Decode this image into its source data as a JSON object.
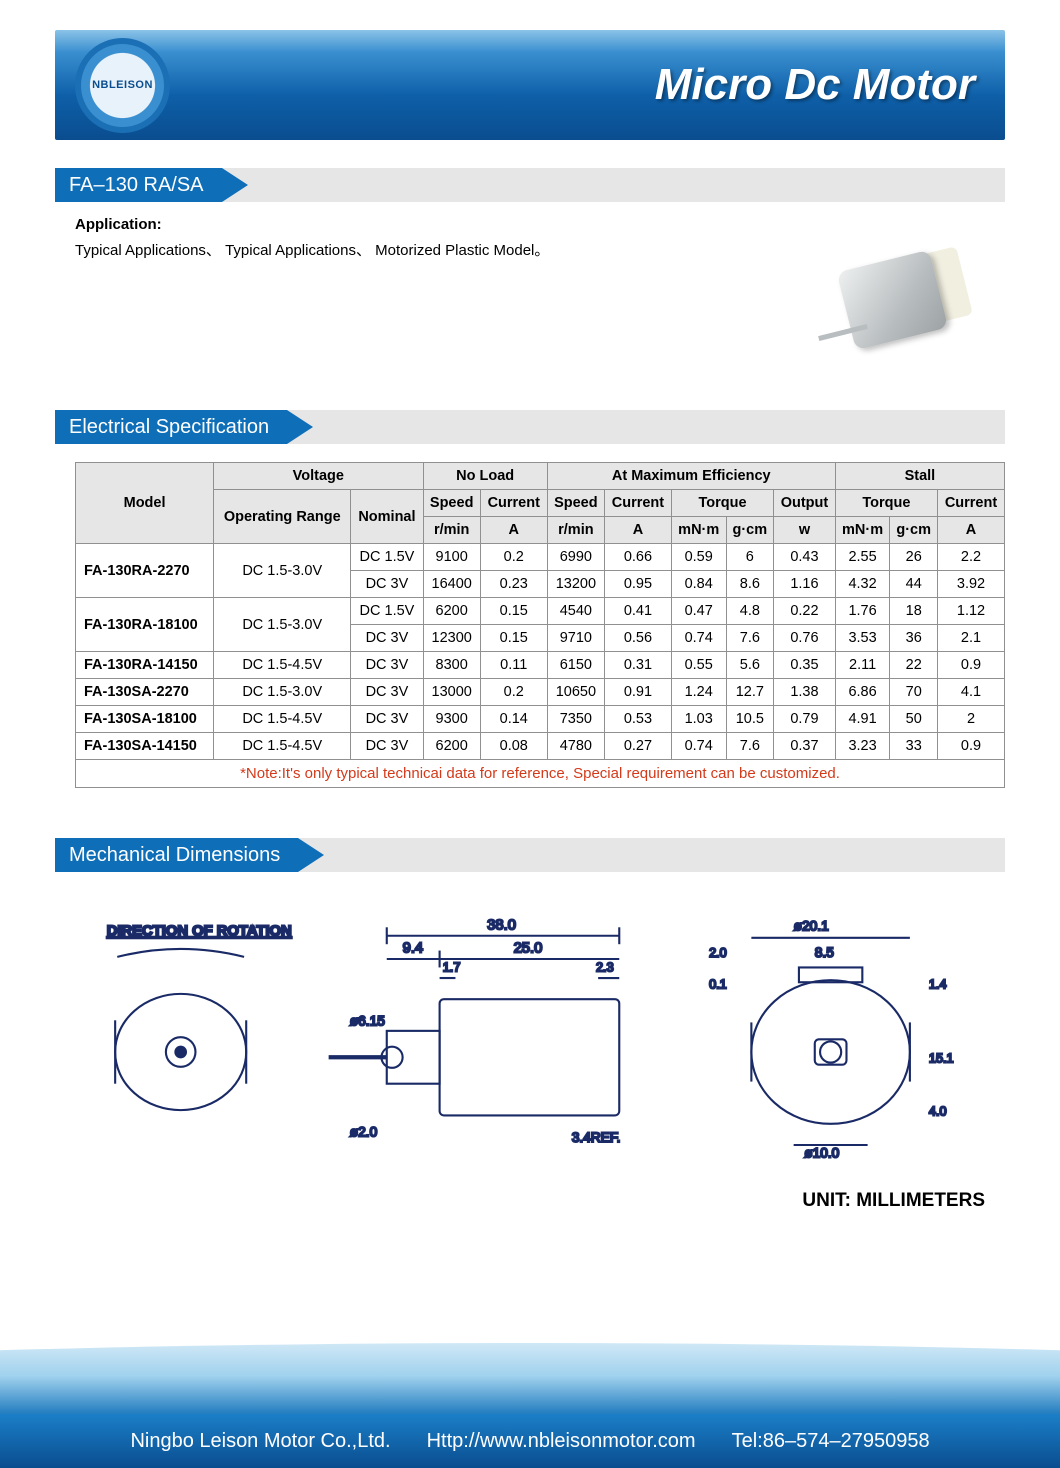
{
  "banner": {
    "logo_text": "NBLEISON",
    "title": "Micro Dc Motor"
  },
  "model_header": "FA–130 RA/SA",
  "application": {
    "label": "Application:",
    "text": "Typical Applications、 Typical Applications、 Motorized Plastic Model。"
  },
  "elec_header": "Electrical Specification",
  "spec": {
    "head": {
      "model": "Model",
      "voltage": "Voltage",
      "noload": "No Load",
      "maxeff": "At Maximum Efficiency",
      "stall": "Stall",
      "op_range": "Operating Range",
      "nominal": "Nominal",
      "speed": "Speed",
      "current": "Current",
      "torque": "Torque",
      "output": "Output",
      "rmin": "r/min",
      "A": "A",
      "mNm": "mN·m",
      "gcm": "g·cm",
      "w": "w"
    },
    "rows": [
      {
        "model": "FA-130RA-2270",
        "range": "DC 1.5-3.0V",
        "span": 2,
        "sub": [
          {
            "nom": "DC 1.5V",
            "nl_s": "9100",
            "nl_a": "0.2",
            "me_s": "6990",
            "me_a": "0.66",
            "me_t1": "0.59",
            "me_t2": "6",
            "me_w": "0.43",
            "st_t1": "2.55",
            "st_t2": "26",
            "st_a": "2.2"
          },
          {
            "nom": "DC 3V",
            "nl_s": "16400",
            "nl_a": "0.23",
            "me_s": "13200",
            "me_a": "0.95",
            "me_t1": "0.84",
            "me_t2": "8.6",
            "me_w": "1.16",
            "st_t1": "4.32",
            "st_t2": "44",
            "st_a": "3.92"
          }
        ]
      },
      {
        "model": "FA-130RA-18100",
        "range": "DC 1.5-3.0V",
        "span": 2,
        "sub": [
          {
            "nom": "DC 1.5V",
            "nl_s": "6200",
            "nl_a": "0.15",
            "me_s": "4540",
            "me_a": "0.41",
            "me_t1": "0.47",
            "me_t2": "4.8",
            "me_w": "0.22",
            "st_t1": "1.76",
            "st_t2": "18",
            "st_a": "1.12"
          },
          {
            "nom": "DC 3V",
            "nl_s": "12300",
            "nl_a": "0.15",
            "me_s": "9710",
            "me_a": "0.56",
            "me_t1": "0.74",
            "me_t2": "7.6",
            "me_w": "0.76",
            "st_t1": "3.53",
            "st_t2": "36",
            "st_a": "2.1"
          }
        ]
      },
      {
        "model": "FA-130RA-14150",
        "range": "DC 1.5-4.5V",
        "span": 1,
        "sub": [
          {
            "nom": "DC 3V",
            "nl_s": "8300",
            "nl_a": "0.11",
            "me_s": "6150",
            "me_a": "0.31",
            "me_t1": "0.55",
            "me_t2": "5.6",
            "me_w": "0.35",
            "st_t1": "2.11",
            "st_t2": "22",
            "st_a": "0.9"
          }
        ]
      },
      {
        "model": "FA-130SA-2270",
        "range": "DC 1.5-3.0V",
        "span": 1,
        "sub": [
          {
            "nom": "DC 3V",
            "nl_s": "13000",
            "nl_a": "0.2",
            "me_s": "10650",
            "me_a": "0.91",
            "me_t1": "1.24",
            "me_t2": "12.7",
            "me_w": "1.38",
            "st_t1": "6.86",
            "st_t2": "70",
            "st_a": "4.1"
          }
        ]
      },
      {
        "model": "FA-130SA-18100",
        "range": "DC 1.5-4.5V",
        "span": 1,
        "sub": [
          {
            "nom": "DC 3V",
            "nl_s": "9300",
            "nl_a": "0.14",
            "me_s": "7350",
            "me_a": "0.53",
            "me_t1": "1.03",
            "me_t2": "10.5",
            "me_w": "0.79",
            "st_t1": "4.91",
            "st_t2": "50",
            "st_a": "2"
          }
        ]
      },
      {
        "model": "FA-130SA-14150",
        "range": "DC 1.5-4.5V",
        "span": 1,
        "sub": [
          {
            "nom": "DC 3V",
            "nl_s": "6200",
            "nl_a": "0.08",
            "me_s": "4780",
            "me_a": "0.27",
            "me_t1": "0.74",
            "me_t2": "7.6",
            "me_w": "0.37",
            "st_t1": "3.23",
            "st_t2": "33",
            "st_a": "0.9"
          }
        ]
      }
    ],
    "note": "*Note:It's only typical technicai data for reference, Special requirement can be customized."
  },
  "mech_header": "Mechanical Dimensions",
  "mech": {
    "rotation_label": "DIRECTION OF ROTATION",
    "unit": "UNIT: MILLIMETERS",
    "dims": {
      "len_total": "38.0",
      "body": "25.0",
      "cap": "9.4",
      "gap1": "1.7",
      "gap2": "2.3",
      "shaft_d": "ø2.0",
      "boss_d": "ø6.15",
      "ref": "3.4REF.",
      "face_d": "ø20.1",
      "tab": "8.5",
      "h1": "1.4",
      "h2": "15.1",
      "h3": "4.0",
      "hole": "ø10.0",
      "t1": "2.0",
      "t2": "0.1"
    }
  },
  "footer": {
    "company": "Ningbo Leison Motor Co.,Ltd.",
    "url": "Http://www.nbleisonmotor.com",
    "tel": "Tel:86–574–27950958"
  },
  "colors": {
    "brand": "#0e6fb8",
    "gray_bg": "#e6e6e6",
    "note": "#d43a1a",
    "border": "#909090"
  }
}
